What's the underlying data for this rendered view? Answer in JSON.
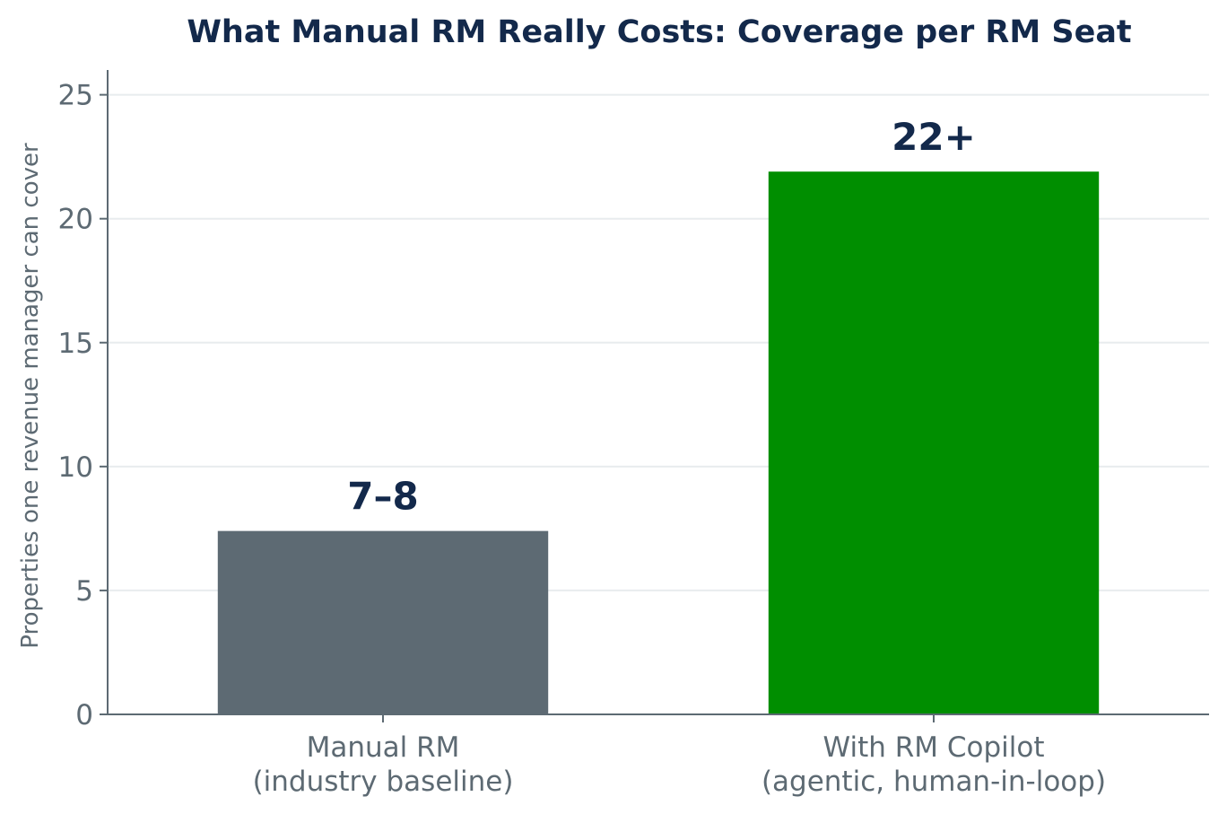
{
  "chart_data": {
    "type": "bar",
    "title": "What Manual RM Really Costs: Coverage per RM Seat",
    "xlabel": "",
    "ylabel": "Properties one revenue manager can cover",
    "ylim": [
      0,
      26
    ],
    "yticks": [
      0,
      5,
      10,
      15,
      20,
      25
    ],
    "grid": "y",
    "categories": [
      [
        "Manual RM",
        "(industry baseline)"
      ],
      [
        "With RM Copilot",
        "(agentic, human-in-loop)"
      ]
    ],
    "values": [
      7.4,
      21.9
    ],
    "data_labels": [
      "7–8",
      "22+"
    ],
    "colors": [
      "#5d6a73",
      "#008e00"
    ],
    "axis_color": "#5d6a73",
    "grid_color": "#e8ecee"
  }
}
